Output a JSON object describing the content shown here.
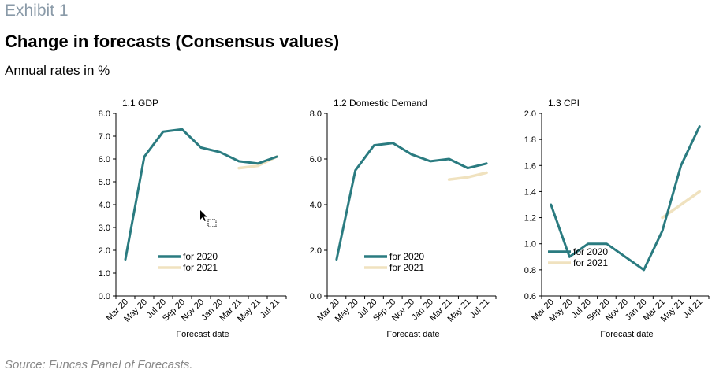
{
  "header": {
    "exhibit": "Exhibit 1",
    "title": "Change in forecasts (Consensus values)",
    "subtitle": "Annual rates in %"
  },
  "footer": {
    "source": "Source: Funcas Panel of Forecasts."
  },
  "colors": {
    "series_2020": "#2a7b80",
    "series_2021": "#f0e2bf",
    "axis": "#000000"
  },
  "chart_data": [
    {
      "type": "line",
      "title": "1.1 GDP",
      "xlabel": "Forecast date",
      "ylabel": "",
      "ylim": [
        0,
        8
      ],
      "yticks": [
        "0.0",
        "1.0",
        "2.0",
        "3.0",
        "4.0",
        "5.0",
        "6.0",
        "7.0",
        "8.0"
      ],
      "categories": [
        "Mar 20",
        "May 20",
        "Jul 20",
        "Sep 20",
        "Nov 20",
        "Jan 20",
        "Mar 21",
        "May 21",
        "Jul 21"
      ],
      "series": [
        {
          "name": "for 2020",
          "values": [
            1.6,
            6.1,
            7.2,
            7.3,
            6.5,
            6.3,
            5.9,
            5.8,
            6.1
          ]
        },
        {
          "name": "for 2021",
          "values": [
            null,
            null,
            null,
            null,
            null,
            null,
            5.6,
            5.7,
            6.1
          ]
        }
      ],
      "legend": "bottom-center",
      "grid": false
    },
    {
      "type": "line",
      "title": "1.2 Domestic Demand",
      "xlabel": "Forecast date",
      "ylabel": "",
      "ylim": [
        0,
        8
      ],
      "yticks": [
        "0.0",
        "2.0",
        "4.0",
        "6.0",
        "8.0"
      ],
      "categories": [
        "Mar 20",
        "May 20",
        "Jul 20",
        "Sep 20",
        "Nov 20",
        "Jan 20",
        "Mar 21",
        "May 21",
        "Jul 21"
      ],
      "series": [
        {
          "name": "for 2020",
          "values": [
            1.6,
            5.5,
            6.6,
            6.7,
            6.2,
            5.9,
            6.0,
            5.6,
            5.8
          ]
        },
        {
          "name": "for 2021",
          "values": [
            null,
            null,
            null,
            null,
            null,
            null,
            5.1,
            5.2,
            5.4
          ]
        }
      ],
      "legend": "bottom-center",
      "grid": false
    },
    {
      "type": "line",
      "title": "1.3 CPI",
      "xlabel": "Forecast date",
      "ylabel": "",
      "ylim": [
        0.6,
        2.0
      ],
      "yticks": [
        "0.6",
        "0.8",
        "1.0",
        "1.2",
        "1.4",
        "1.6",
        "1.8",
        "2.0"
      ],
      "categories": [
        "Mar 20",
        "May 20",
        "Jul 20",
        "Sep 20",
        "Nov 20",
        "Jan 20",
        "Mar 21",
        "May 21",
        "Jul 21"
      ],
      "series": [
        {
          "name": "for 2020",
          "values": [
            1.3,
            0.9,
            1.0,
            1.0,
            0.9,
            0.8,
            1.1,
            1.6,
            1.9
          ]
        },
        {
          "name": "for 2021",
          "values": [
            null,
            null,
            null,
            null,
            null,
            null,
            1.2,
            1.3,
            1.4
          ]
        }
      ],
      "legend": "bottom-left",
      "grid": false
    }
  ]
}
